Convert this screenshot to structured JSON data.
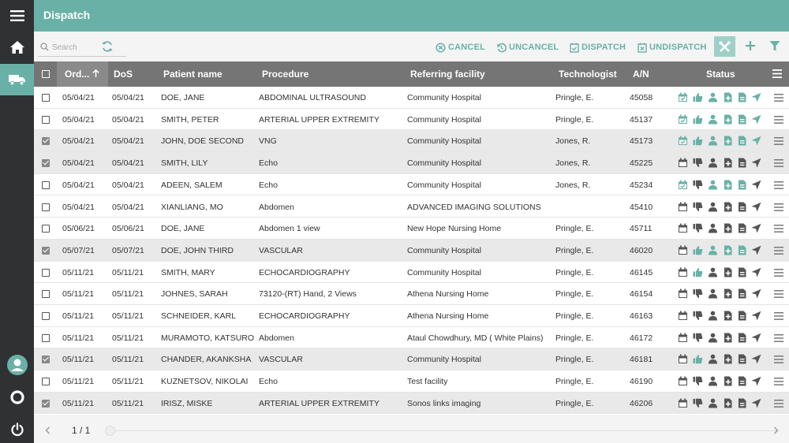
{
  "header": {
    "title": "Dispatch"
  },
  "toolbar": {
    "search_placeholder": "Search",
    "cancel": "CANCEL",
    "uncancel": "UNCANCEL",
    "dispatch": "DISPATCH",
    "undispatch": "UNDISPATCH"
  },
  "columns": {
    "order": "Ord...",
    "dos": "DoS",
    "patient": "Patient name",
    "procedure": "Procedure",
    "facility": "Referring facility",
    "technologist": "Technologist",
    "an": "A/N",
    "status": "Status"
  },
  "rows": [
    {
      "ord": "05/04/21",
      "dos": "05/04/21",
      "patient": "DOE, JANE",
      "procedure": "ABDOMINAL ULTRASOUND",
      "facility": "Community Hospital",
      "tech": "Pringle, E.",
      "an": "45058",
      "selected": false,
      "status": [
        1,
        1,
        1,
        1,
        1,
        1
      ]
    },
    {
      "ord": "05/04/21",
      "dos": "05/04/21",
      "patient": "SMITH, PETER",
      "procedure": "ARTERIAL UPPER EXTREMITY",
      "facility": "Community Hospital",
      "tech": "Pringle, E.",
      "an": "45137",
      "selected": false,
      "status": [
        1,
        1,
        1,
        1,
        1,
        1
      ]
    },
    {
      "ord": "05/04/21",
      "dos": "05/04/21",
      "patient": "JOHN, DOE SECOND",
      "procedure": "VNG",
      "facility": "Community Hospital",
      "tech": "Jones, R.",
      "an": "45173",
      "selected": true,
      "status": [
        1,
        1,
        1,
        1,
        1,
        1
      ]
    },
    {
      "ord": "05/04/21",
      "dos": "05/04/21",
      "patient": "SMITH, LILY",
      "procedure": "Echo",
      "facility": "Community Hospital",
      "tech": "Jones, R.",
      "an": "45225",
      "selected": true,
      "status": [
        0,
        0,
        0,
        0,
        0,
        0
      ]
    },
    {
      "ord": "05/04/21",
      "dos": "05/04/21",
      "patient": "ADEEN, SALEM",
      "procedure": "Echo",
      "facility": "Community Hospital",
      "tech": "Jones, R.",
      "an": "45234",
      "selected": false,
      "status": [
        1,
        0,
        1,
        1,
        1,
        0
      ]
    },
    {
      "ord": "05/04/21",
      "dos": "05/04/21",
      "patient": "XIANLIANG, MO",
      "procedure": "Abdomen",
      "facility": "ADVANCED IMAGING SOLUTIONS",
      "tech": "",
      "an": "45410",
      "selected": false,
      "status": [
        0,
        0,
        0,
        0,
        0,
        0
      ]
    },
    {
      "ord": "05/06/21",
      "dos": "05/06/21",
      "patient": "DOE, JANE",
      "procedure": "Abdomen 1 view",
      "facility": "New Hope Nursing Home",
      "tech": "Pringle, E.",
      "an": "45711",
      "selected": false,
      "status": [
        0,
        0,
        0,
        0,
        0,
        0
      ]
    },
    {
      "ord": "05/07/21",
      "dos": "05/07/21",
      "patient": "DOE, JOHN THIRD",
      "procedure": "VASCULAR",
      "facility": "Community Hospital",
      "tech": "Pringle, E.",
      "an": "46020",
      "selected": true,
      "status": [
        0,
        1,
        1,
        1,
        1,
        0
      ]
    },
    {
      "ord": "05/11/21",
      "dos": "05/11/21",
      "patient": "SMITH, MARY",
      "procedure": "ECHOCARDIOGRAPHY",
      "facility": "Community Hospital",
      "tech": "Pringle, E.",
      "an": "46145",
      "selected": false,
      "status": [
        0,
        1,
        0,
        0,
        0,
        0
      ]
    },
    {
      "ord": "05/11/21",
      "dos": "05/11/21",
      "patient": "JOHNES, SARAH",
      "procedure": "73120-(RT) Hand, 2 Views",
      "facility": "Athena Nursing Home",
      "tech": "Pringle, E.",
      "an": "46154",
      "selected": false,
      "status": [
        0,
        0,
        0,
        0,
        0,
        0
      ]
    },
    {
      "ord": "05/11/21",
      "dos": "05/11/21",
      "patient": "SCHNEIDER, KARL",
      "procedure": "ECHOCARDIOGRAPHY",
      "facility": "Athena Nursing Home",
      "tech": "Pringle, E.",
      "an": "46163",
      "selected": false,
      "status": [
        0,
        0,
        0,
        0,
        0,
        0
      ]
    },
    {
      "ord": "05/11/21",
      "dos": "05/11/21",
      "patient": "MURAMOTO, KATSURO",
      "procedure": "Abdomen",
      "facility": "Ataul Chowdhury, MD ( White Plains)",
      "tech": "Pringle, E.",
      "an": "46172",
      "selected": false,
      "status": [
        0,
        0,
        0,
        0,
        0,
        0
      ]
    },
    {
      "ord": "05/11/21",
      "dos": "05/11/21",
      "patient": "CHANDER, AKANKSHA",
      "procedure": "VASCULAR",
      "facility": "Community Hospital",
      "tech": "Pringle, E.",
      "an": "46181",
      "selected": true,
      "status": [
        0,
        1,
        0,
        0,
        0,
        0
      ]
    },
    {
      "ord": "05/11/21",
      "dos": "05/11/21",
      "patient": "KUZNETSOV, NIKOLAI",
      "procedure": "Echo",
      "facility": "Test facility",
      "tech": "Pringle, E.",
      "an": "46190",
      "selected": false,
      "status": [
        0,
        0,
        0,
        0,
        0,
        0
      ]
    },
    {
      "ord": "05/11/21",
      "dos": "05/11/21",
      "patient": "IRISZ, MISKE",
      "procedure": "ARTERIAL UPPER EXTREMITY",
      "facility": "Sonos links imaging",
      "tech": "Pringle, E.",
      "an": "46206",
      "selected": true,
      "status": [
        0,
        0,
        0,
        0,
        0,
        0
      ]
    }
  ],
  "status_icons": [
    "calendar-icon",
    "thumbs-icon",
    "user-icon",
    "doc-plus-icon",
    "doc-icon",
    "send-icon"
  ],
  "colors": {
    "accent": "#69b1a6",
    "muted": "#555555"
  },
  "footer": {
    "pager": "1 / 1"
  }
}
